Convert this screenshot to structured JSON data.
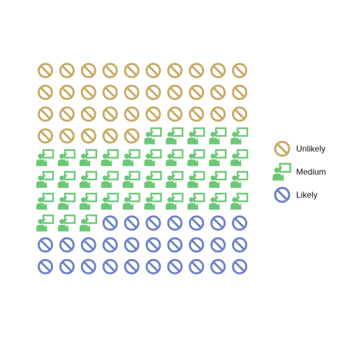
{
  "chart_data": {
    "type": "waffle",
    "title": "",
    "grid": {
      "rows": 10,
      "cols": 10,
      "fill_order": "row-major, top-left first"
    },
    "series": [
      {
        "name": "Unlikely",
        "value": 35,
        "color": "#C8AA64",
        "icon": "ban-icon"
      },
      {
        "name": "Medium",
        "value": 38,
        "color": "#6CC878",
        "icon": "presenter-icon"
      },
      {
        "name": "Likely",
        "value": 27,
        "color": "#6E82C8",
        "icon": "ban-icon"
      }
    ],
    "legend": {
      "position": "right"
    }
  }
}
